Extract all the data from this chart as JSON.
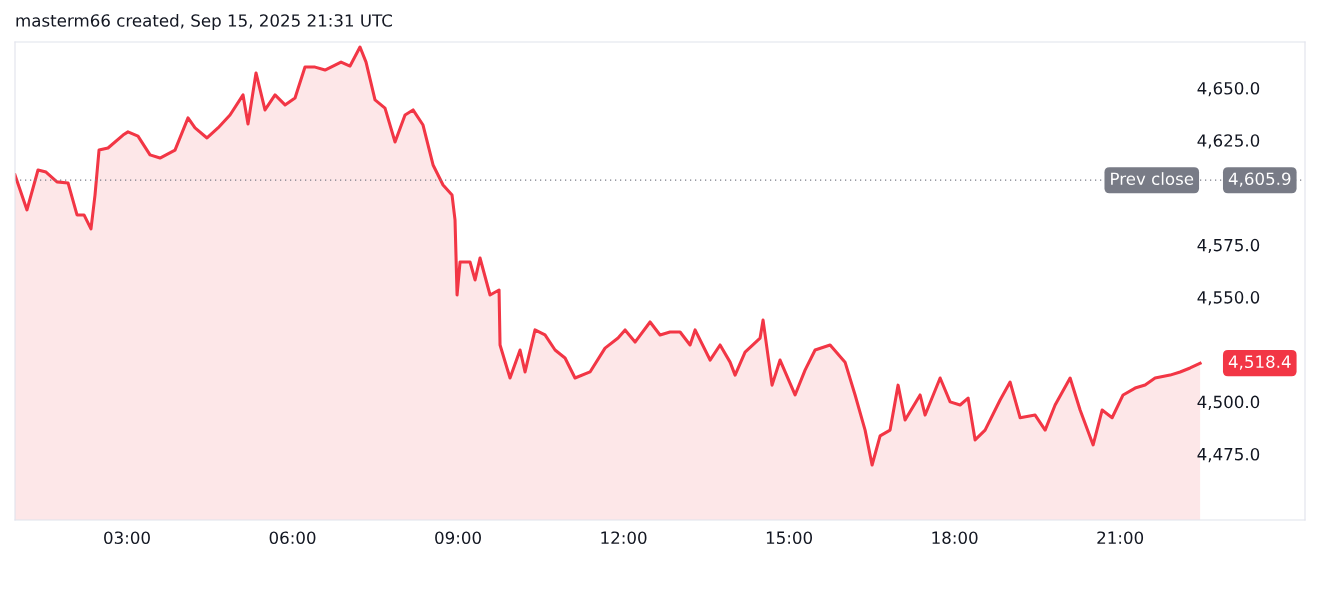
{
  "chart_data": {
    "type": "area",
    "title": "masterm66 created, Sep 15, 2025 21:31 UTC",
    "x": [
      0.97,
      1.187,
      1.387,
      1.532,
      1.731,
      1.931,
      2.094,
      2.221,
      2.347,
      2.42,
      2.493,
      2.656,
      2.928,
      3.018,
      3.199,
      3.417,
      3.598,
      3.87,
      4.106,
      4.233,
      4.45,
      4.649,
      4.867,
      5.103,
      5.193,
      5.338,
      5.501,
      5.683,
      5.864,
      6.045,
      6.226,
      6.408,
      6.589,
      6.879,
      7.042,
      7.223,
      7.332,
      7.495,
      7.676,
      7.858,
      8.039,
      8.184,
      8.365,
      8.547,
      8.728,
      8.891,
      8.945,
      8.982,
      9.036,
      9.217,
      9.308,
      9.398,
      9.58,
      9.743,
      9.761,
      9.942,
      10.124,
      10.214,
      10.395,
      10.576,
      10.758,
      10.939,
      11.12,
      11.392,
      11.664,
      11.9,
      12.027,
      12.208,
      12.48,
      12.661,
      12.842,
      13.024,
      13.205,
      13.296,
      13.568,
      13.749,
      13.93,
      14.021,
      14.202,
      14.474,
      14.528,
      14.691,
      14.836,
      15.108,
      15.289,
      15.471,
      15.743,
      16.014,
      16.196,
      16.377,
      16.504,
      16.649,
      16.83,
      16.975,
      17.102,
      17.374,
      17.465,
      17.737,
      17.918,
      18.099,
      18.244,
      18.371,
      18.552,
      18.824,
      19.005,
      19.187,
      19.459,
      19.64,
      19.821,
      20.093,
      20.274,
      20.51,
      20.673,
      20.854,
      21.053,
      21.271,
      21.452,
      21.633,
      21.905,
      22.087,
      22.268,
      22.449
    ],
    "series": [
      {
        "color": "#f23645",
        "values": [
          4608.4,
          4591.7,
          4610.8,
          4609.8,
          4605.1,
          4604.6,
          4589.3,
          4589.3,
          4582.6,
          4598.8,
          4620.3,
          4621.3,
          4627.5,
          4629.0,
          4627.0,
          4618.0,
          4616.5,
          4620.3,
          4635.7,
          4630.9,
          4626.1,
          4630.9,
          4637.1,
          4646.7,
          4632.8,
          4657.2,
          4639.5,
          4646.7,
          4641.9,
          4645.2,
          4660.0,
          4660.0,
          4658.6,
          4662.4,
          4660.5,
          4669.6,
          4662.4,
          4644.3,
          4640.4,
          4624.2,
          4637.1,
          4639.5,
          4632.3,
          4613.2,
          4603.6,
          4598.8,
          4586.9,
          4551.0,
          4566.8,
          4566.8,
          4558.2,
          4568.7,
          4551.0,
          4553.4,
          4527.1,
          4511.3,
          4524.7,
          4514.2,
          4534.3,
          4531.9,
          4524.7,
          4520.9,
          4511.3,
          4514.2,
          4525.6,
          4530.4,
          4534.3,
          4528.5,
          4538.1,
          4531.9,
          4533.3,
          4533.3,
          4527.1,
          4534.3,
          4519.9,
          4527.1,
          4518.9,
          4512.7,
          4523.7,
          4530.4,
          4539.0,
          4507.9,
          4519.9,
          4503.2,
          4515.1,
          4524.7,
          4527.1,
          4518.9,
          4503.2,
          4486.4,
          4469.7,
          4483.6,
          4486.4,
          4507.9,
          4491.2,
          4503.2,
          4493.6,
          4511.3,
          4499.9,
          4498.4,
          4501.7,
          4481.7,
          4486.4,
          4500.8,
          4509.4,
          4492.3,
          4493.6,
          4486.4,
          4498.4,
          4511.3,
          4496.0,
          4479.3,
          4496.0,
          4492.3,
          4503.2,
          4506.5,
          4508.0,
          4511.3,
          4512.7,
          4514.2,
          4516.1,
          4518.4
        ]
      }
    ],
    "xlim": [
      0.97,
      24.35
    ],
    "xticks": [
      {
        "value": 3,
        "label": "03:00"
      },
      {
        "value": 6,
        "label": "06:00"
      },
      {
        "value": 9,
        "label": "09:00"
      },
      {
        "value": 12,
        "label": "12:00"
      },
      {
        "value": 15,
        "label": "15:00"
      },
      {
        "value": 18,
        "label": "18:00"
      },
      {
        "value": 21,
        "label": "21:00"
      }
    ],
    "ylim": [
      4443.4,
      4672.0
    ],
    "yticks": [
      {
        "value": 4475,
        "label": "4,475.0"
      },
      {
        "value": 4500,
        "label": "4,500.0"
      },
      {
        "value": 4550,
        "label": "4,550.0"
      },
      {
        "value": 4575,
        "label": "4,575.0"
      },
      {
        "value": 4625,
        "label": "4,625.0"
      },
      {
        "value": 4650,
        "label": "4,650.0"
      }
    ],
    "ref_lines": [
      {
        "axis": "y",
        "value": 4605.9,
        "label": "Prev close",
        "color": "#787b86",
        "line_style": "dotted"
      }
    ],
    "annotations": [
      {
        "text": "4,605.9",
        "y": 4605.9
      },
      "4,518.4"
    ],
    "grid": false,
    "legend": false
  }
}
